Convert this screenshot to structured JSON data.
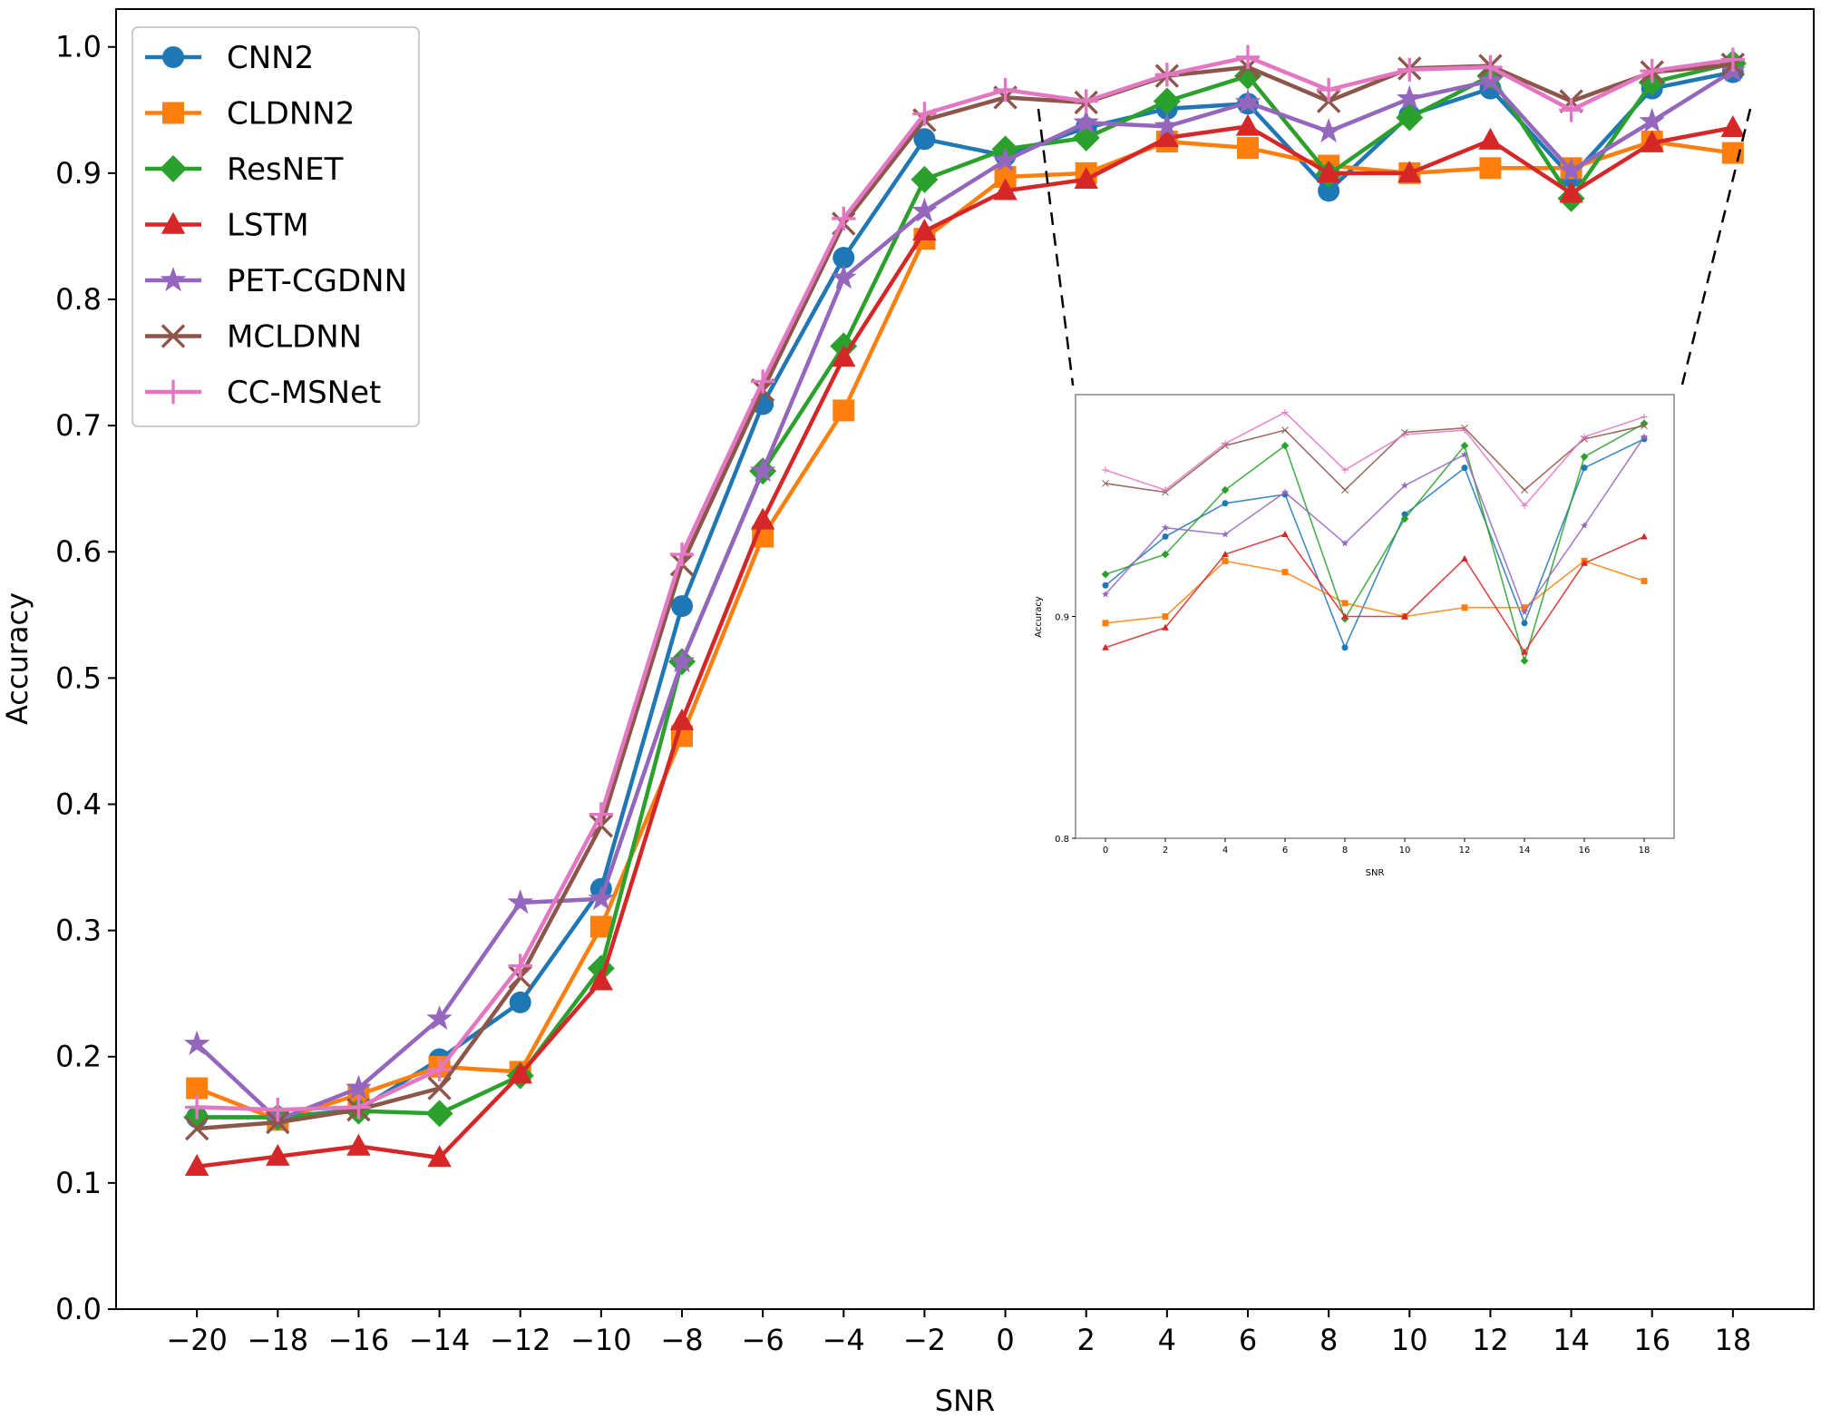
{
  "chart_data": {
    "type": "line",
    "xlabel": "SNR",
    "ylabel": "Accuracy",
    "x": [
      -20,
      -18,
      -16,
      -14,
      -12,
      -10,
      -8,
      -6,
      -4,
      -2,
      0,
      2,
      4,
      6,
      8,
      10,
      12,
      14,
      16,
      18
    ],
    "xticks": [
      "−20",
      "−18",
      "−16",
      "−14",
      "−12",
      "−10",
      "−8",
      "−6",
      "−4",
      "−2",
      "0",
      "2",
      "4",
      "6",
      "8",
      "10",
      "12",
      "14",
      "16",
      "18"
    ],
    "yticks": [
      "0.0",
      "0.1",
      "0.2",
      "0.3",
      "0.4",
      "0.5",
      "0.6",
      "0.7",
      "0.8",
      "0.9",
      "1.0"
    ],
    "xlim": [
      -22,
      20
    ],
    "ylim": [
      0.0,
      1.03
    ],
    "legend_position": "top-left",
    "series": [
      {
        "name": "CNN2",
        "color": "#1f77b4",
        "marker": "circle",
        "values": [
          0.152,
          0.152,
          0.158,
          0.198,
          0.243,
          0.333,
          0.557,
          0.717,
          0.833,
          0.927,
          0.914,
          0.936,
          0.951,
          0.955,
          0.886,
          0.946,
          0.967,
          0.897,
          0.967,
          0.98
        ]
      },
      {
        "name": "CLDNN2",
        "color": "#ff7f0e",
        "marker": "square",
        "values": [
          0.175,
          0.15,
          0.17,
          0.192,
          0.188,
          0.303,
          0.454,
          0.612,
          0.712,
          0.848,
          0.897,
          0.9,
          0.925,
          0.92,
          0.906,
          0.9,
          0.904,
          0.904,
          0.925,
          0.916
        ]
      },
      {
        "name": "ResNET",
        "color": "#2ca02c",
        "marker": "diamond",
        "values": [
          0.152,
          0.152,
          0.157,
          0.155,
          0.185,
          0.27,
          0.513,
          0.664,
          0.763,
          0.895,
          0.919,
          0.928,
          0.957,
          0.977,
          0.899,
          0.944,
          0.977,
          0.88,
          0.972,
          0.987
        ]
      },
      {
        "name": "LSTM",
        "color": "#d62728",
        "marker": "triangle",
        "values": [
          0.113,
          0.121,
          0.129,
          0.12,
          0.186,
          0.26,
          0.466,
          0.625,
          0.754,
          0.854,
          0.886,
          0.895,
          0.928,
          0.937,
          0.9,
          0.9,
          0.926,
          0.884,
          0.924,
          0.936
        ]
      },
      {
        "name": "PET-CGDNN",
        "color": "#9467bd",
        "marker": "star",
        "values": [
          0.21,
          0.15,
          0.175,
          0.23,
          0.322,
          0.325,
          0.513,
          0.664,
          0.817,
          0.87,
          0.91,
          0.94,
          0.937,
          0.956,
          0.933,
          0.959,
          0.973,
          0.902,
          0.941,
          0.981
        ]
      },
      {
        "name": "MCLDNN",
        "color": "#8c564b",
        "marker": "x",
        "values": [
          0.143,
          0.148,
          0.158,
          0.175,
          0.263,
          0.383,
          0.59,
          0.728,
          0.86,
          0.942,
          0.96,
          0.956,
          0.977,
          0.984,
          0.957,
          0.983,
          0.985,
          0.957,
          0.98,
          0.986
        ]
      },
      {
        "name": "CC-MSNet",
        "color": "#e377c2",
        "marker": "plus",
        "values": [
          0.16,
          0.158,
          0.16,
          0.19,
          0.272,
          0.392,
          0.598,
          0.735,
          0.864,
          0.947,
          0.966,
          0.957,
          0.978,
          0.992,
          0.966,
          0.982,
          0.984,
          0.95,
          0.981,
          0.99
        ]
      }
    ],
    "inset": {
      "xlabel": "SNR",
      "ylabel": "Accuracy",
      "x": [
        0,
        2,
        4,
        6,
        8,
        10,
        12,
        14,
        16,
        18
      ],
      "xticks": [
        "0",
        "2",
        "4",
        "6",
        "8",
        "10",
        "12",
        "14",
        "16",
        "18"
      ],
      "yticks": [
        "0.8",
        "0.9"
      ],
      "xlim": [
        -1,
        19
      ],
      "ylim": [
        0.8,
        1.0
      ],
      "zoom_range": {
        "x": [
          0,
          18
        ]
      }
    }
  }
}
